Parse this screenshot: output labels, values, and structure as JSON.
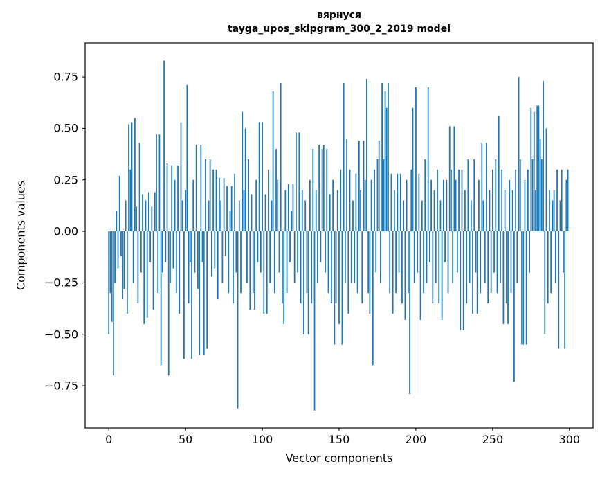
{
  "chart_data": {
    "type": "bar",
    "title": "вярнуся",
    "subtitle": "tayga_upos_skipgram_300_2_2019 model",
    "xlabel": "Vector components",
    "ylabel": "Components values",
    "bar_color": "#1f77b4",
    "axis_color": "#000000",
    "background_color": "#ffffff",
    "legend": "none",
    "grid": false,
    "x_start": 0,
    "bar_width": 0.8,
    "xticks": [
      0,
      50,
      100,
      150,
      200,
      250,
      300
    ],
    "yticks": [
      0.75,
      0.5,
      0.25,
      0.0,
      -0.25,
      -0.5,
      -0.75
    ],
    "xlim": [
      -15.42,
      315.42
    ],
    "ylim": [
      -0.955,
      0.915
    ],
    "values": [
      -0.5,
      -0.3,
      -0.44,
      -0.7,
      -0.25,
      0.1,
      -0.18,
      0.27,
      -0.12,
      -0.33,
      -0.28,
      0.15,
      -0.4,
      0.52,
      0.3,
      0.53,
      -0.25,
      0.55,
      0.12,
      -0.35,
      0.43,
      -0.2,
      0.18,
      -0.45,
      0.15,
      -0.42,
      0.19,
      -0.15,
      0.12,
      -0.38,
      0.19,
      0.47,
      -0.3,
      0.47,
      -0.65,
      -0.2,
      0.83,
      -0.15,
      0.33,
      -0.7,
      -0.25,
      0.32,
      -0.18,
      0.25,
      -0.3,
      0.32,
      -0.4,
      0.53,
      0.15,
      -0.62,
      0.2,
      0.71,
      -0.35,
      -0.15,
      -0.62,
      0.25,
      -0.2,
      0.42,
      -0.28,
      -0.6,
      0.42,
      -0.15,
      -0.6,
      0.35,
      -0.57,
      0.15,
      0.35,
      -0.22,
      0.3,
      -0.18,
      0.3,
      -0.33,
      0.26,
      0.15,
      -0.25,
      0.26,
      -0.12,
      0.22,
      -0.3,
      0.1,
      0.22,
      -0.35,
      0.28,
      -0.2,
      -0.86,
      0.15,
      -0.3,
      0.58,
      0.2,
      0.5,
      -0.25,
      0.35,
      -0.38,
      0.18,
      -0.3,
      -0.38,
      0.25,
      -0.15,
      0.53,
      -0.2,
      0.53,
      -0.4,
      0.18,
      -0.4,
      0.3,
      -0.25,
      0.15,
      0.68,
      -0.3,
      0.4,
      0.25,
      -0.2,
      0.72,
      -0.35,
      -0.45,
      0.2,
      -0.3,
      0.23,
      -0.15,
      0.1,
      0.23,
      -0.25,
      0.48,
      -0.2,
      0.48,
      -0.35,
      0.2,
      -0.5,
      0.15,
      -0.3,
      -0.5,
      0.25,
      -0.35,
      0.4,
      -0.87,
      0.2,
      -0.25,
      0.42,
      -0.15,
      0.4,
      0.42,
      -0.2,
      0.4,
      -0.3,
      0.18,
      -0.35,
      0.25,
      -0.55,
      -0.35,
      0.2,
      -0.45,
      0.3,
      -0.55,
      0.72,
      -0.25,
      0.45,
      -0.4,
      0.3,
      -0.25,
      0.15,
      -0.25,
      0.28,
      -0.3,
      0.44,
      0.2,
      -0.35,
      0.44,
      0.25,
      0.74,
      -0.3,
      -0.4,
      0.25,
      -0.65,
      0.3,
      -0.2,
      0.35,
      0.44,
      -0.25,
      0.72,
      0.35,
      0.68,
      0.6,
      0.72,
      -0.3,
      0.28,
      -0.4,
      0.2,
      -0.3,
      0.28,
      -0.2,
      0.28,
      -0.35,
      0.15,
      -0.43,
      0.25,
      -0.3,
      -0.79,
      0.3,
      0.6,
      -0.25,
      0.7,
      -0.2,
      0.28,
      -0.43,
      0.15,
      -0.3,
      0.35,
      -0.25,
      0.7,
      -0.15,
      0.25,
      -0.35,
      0.2,
      -0.25,
      0.3,
      -0.35,
      0.15,
      -0.43,
      0.25,
      -0.15,
      0.25,
      -0.3,
      0.51,
      0.3,
      -0.25,
      0.51,
      0.25,
      -0.2,
      0.3,
      -0.48,
      0.3,
      -0.48,
      0.2,
      -0.35,
      0.35,
      -0.25,
      0.15,
      -0.4,
      0.35,
      -0.2,
      -0.4,
      0.25,
      -0.3,
      0.43,
      0.15,
      -0.25,
      0.43,
      -0.35,
      0.2,
      -0.3,
      0.3,
      -0.2,
      0.35,
      -0.3,
      0.56,
      -0.25,
      0.3,
      -0.45,
      0.2,
      -0.35,
      -0.45,
      0.25,
      -0.3,
      0.2,
      -0.73,
      0.3,
      -0.25,
      0.75,
      0.35,
      -0.55,
      -0.55,
      0.25,
      -0.55,
      0.3,
      -0.2,
      0.6,
      0.35,
      0.58,
      0.2,
      0.61,
      0.61,
      0.45,
      0.35,
      0.73,
      -0.5,
      0.5,
      -0.35,
      0.2,
      -0.3,
      0.15,
      0.2,
      -0.25,
      0.3,
      -0.57,
      0.15,
      0.3,
      -0.2,
      -0.57,
      0.25,
      0.3
    ]
  }
}
